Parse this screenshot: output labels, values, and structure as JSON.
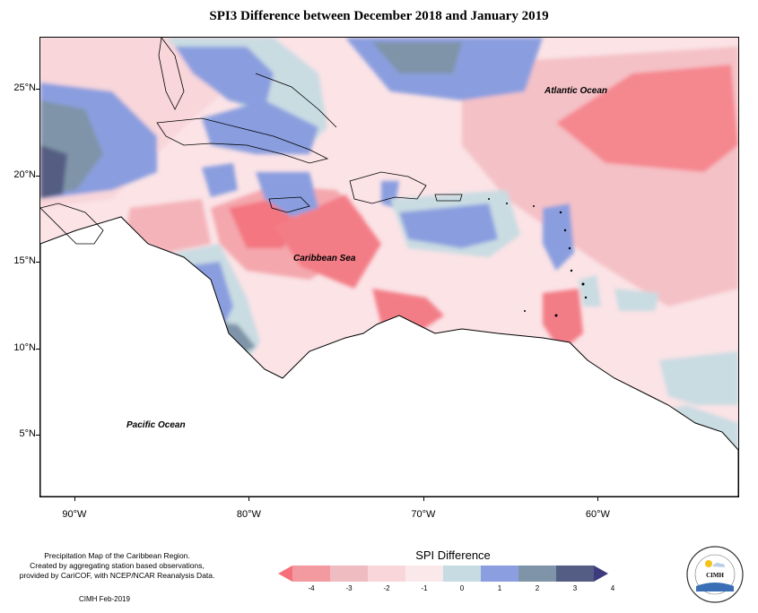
{
  "title": "SPI3 Difference between December 2018 and January 2019",
  "map": {
    "region": "Caribbean",
    "lon_range": [
      -92,
      -52
    ],
    "lat_range": [
      1.5,
      28
    ],
    "labels": {
      "atlantic": "Atlantic Ocean",
      "caribbean": "Caribbean Sea",
      "pacific": "Pacific Ocean"
    },
    "lat_ticks": [
      {
        "value": 25,
        "label": "25°N"
      },
      {
        "value": 20,
        "label": "20°N"
      },
      {
        "value": 15,
        "label": "15°N"
      },
      {
        "value": 10,
        "label": "10°N"
      },
      {
        "value": 5,
        "label": "5°N"
      }
    ],
    "lon_ticks": [
      {
        "value": -90,
        "label": "90°W"
      },
      {
        "value": -80,
        "label": "80°W"
      },
      {
        "value": -70,
        "label": "70°W"
      },
      {
        "value": -60,
        "label": "60°W"
      }
    ]
  },
  "legend": {
    "title": "SPI Difference",
    "labels": [
      "-4",
      "-3",
      "-2",
      "-1",
      "0",
      "1",
      "2",
      "3",
      "4"
    ],
    "colors": [
      "#f5707a",
      "#f39aa1",
      "#efbcc1",
      "#f8d6da",
      "#fbe8ea",
      "#c6dce2",
      "#8b9ee0",
      "#7f94a8",
      "#545d83",
      "#3d3a7e"
    ]
  },
  "caption": {
    "lines": [
      "Precipitation Map of the Caribbean Region.",
      "Created by aggregating station based observations,",
      "provided by CariCOF, with NCEP/NCAR Reanalysis Data."
    ],
    "credit": "CIMH Feb-2019"
  },
  "logo": {
    "text": "CIMH"
  }
}
